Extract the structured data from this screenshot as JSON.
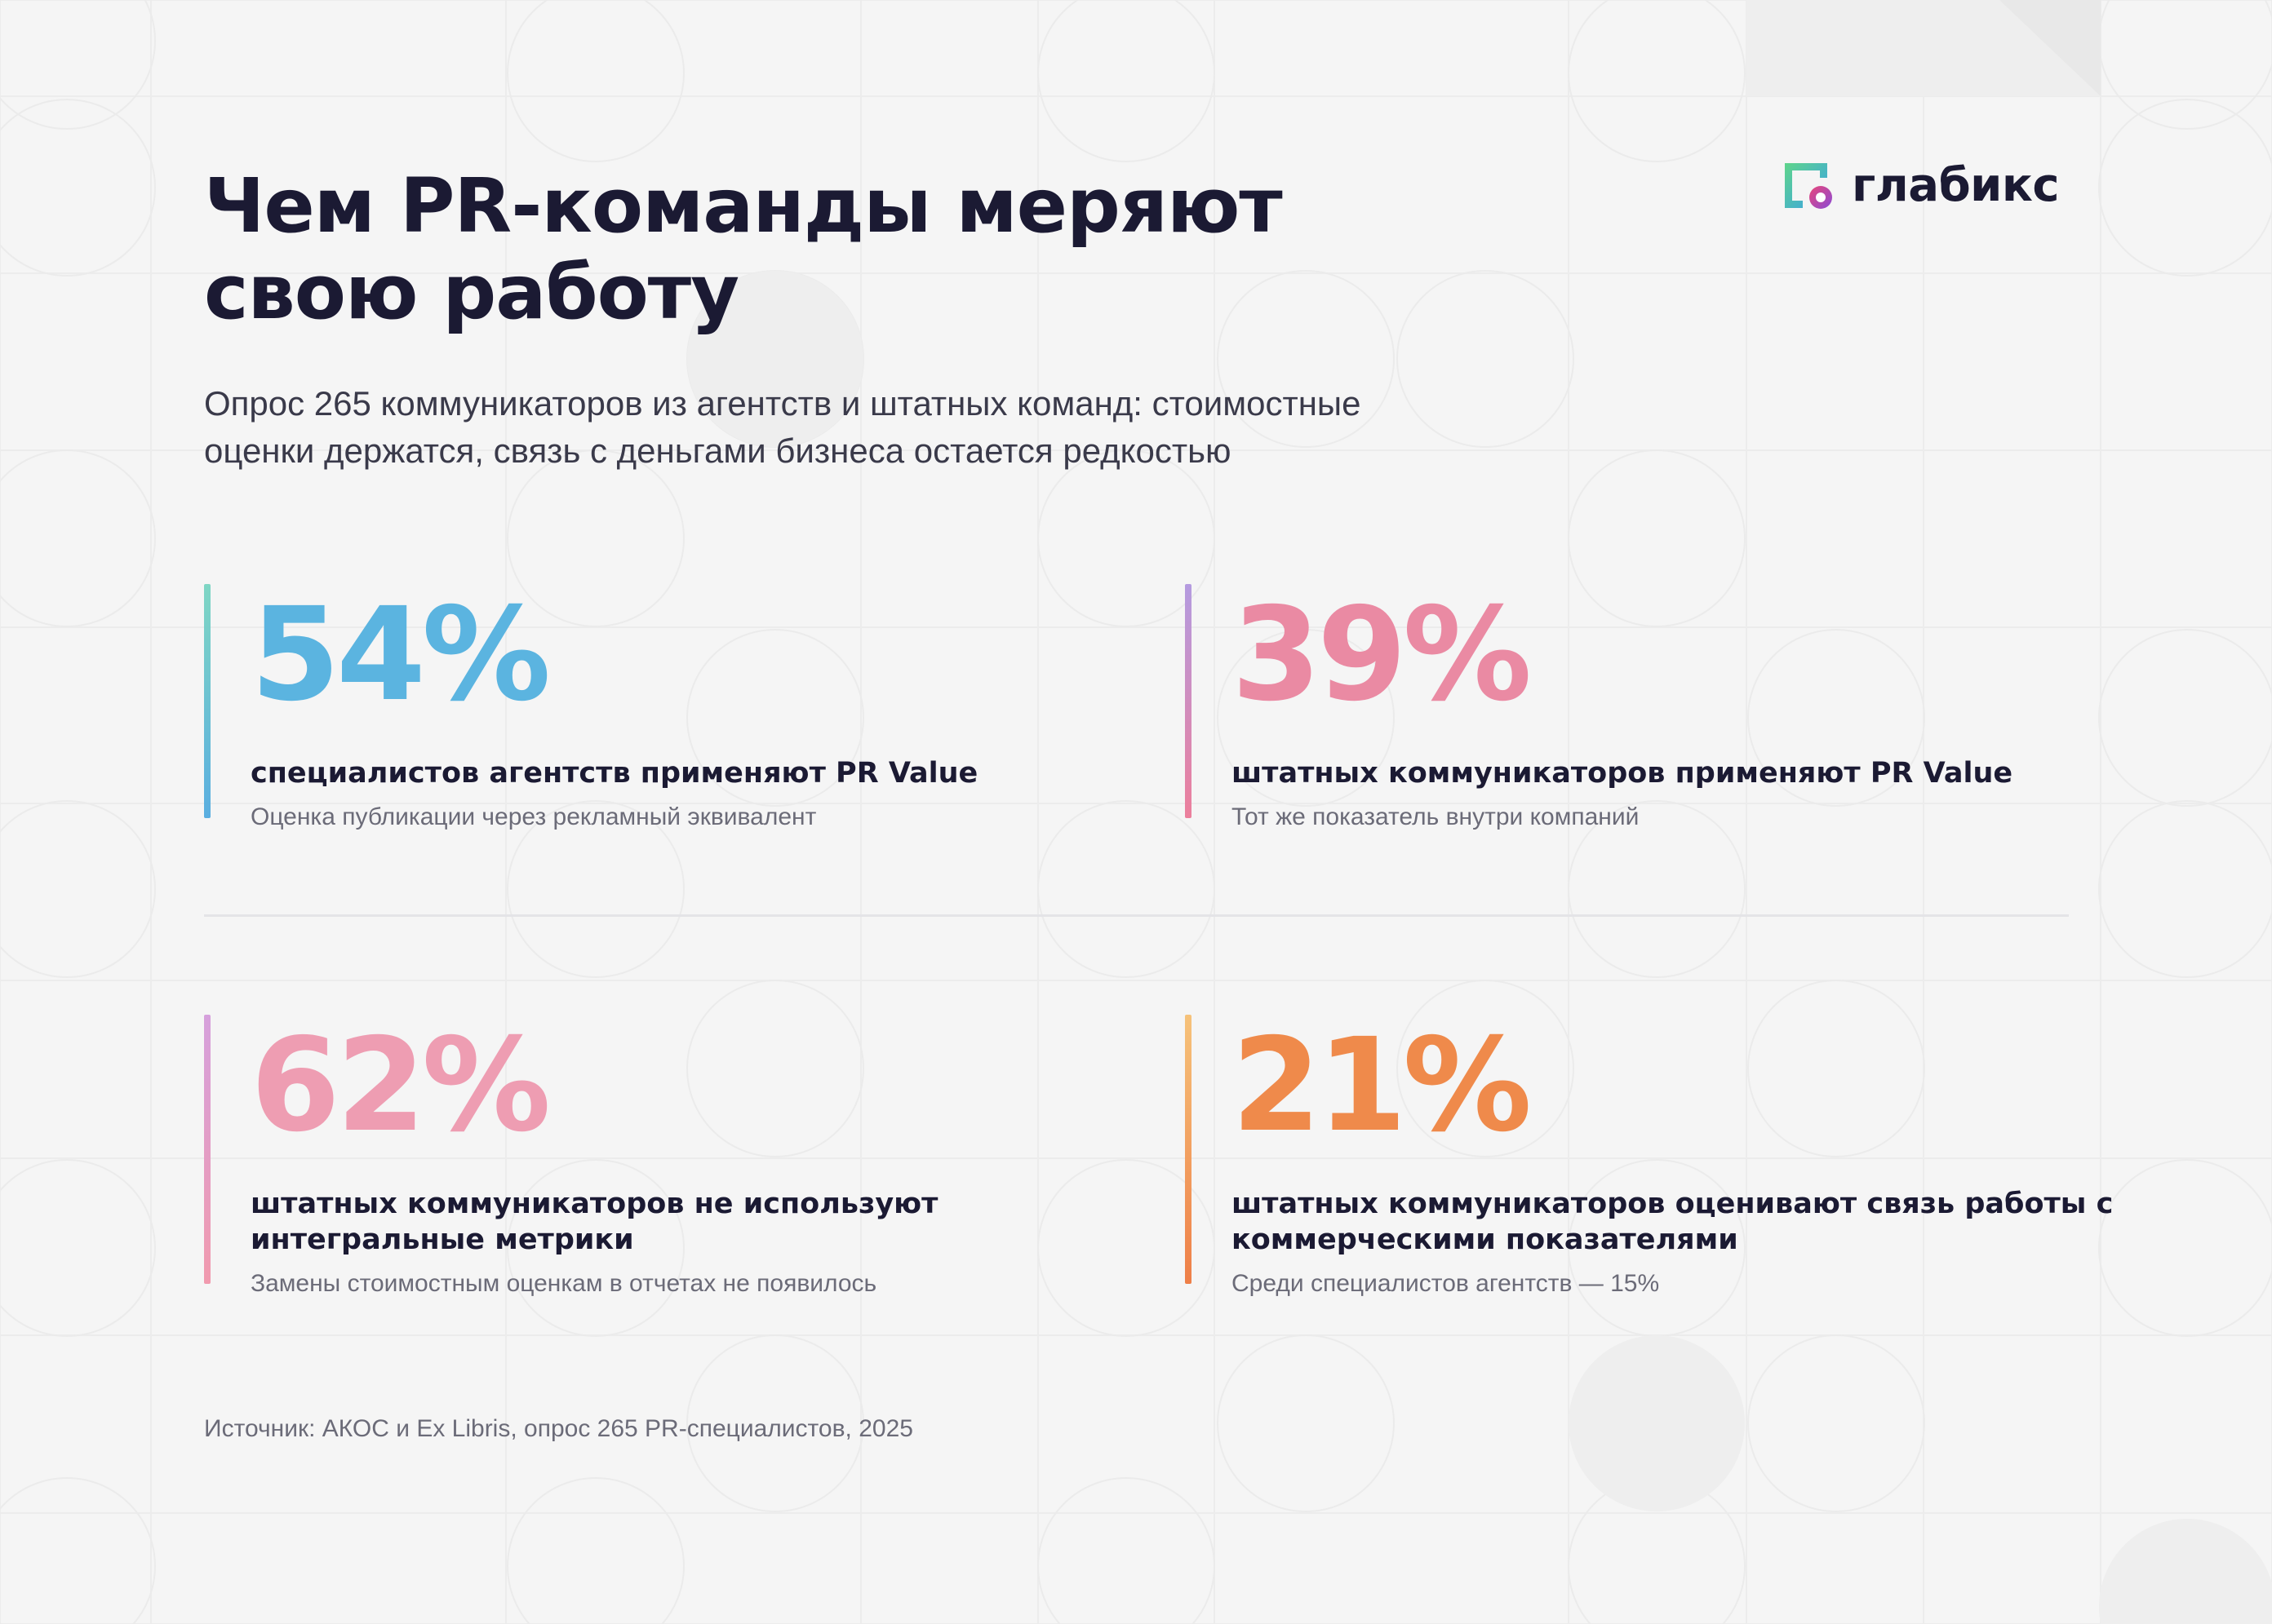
{
  "title": {
    "line1": "Чем PR-команды меряют",
    "line2": "свою работу"
  },
  "subtitle": {
    "line1": "Опрос 265 коммуникаторов из агентств и штатных команд: стоимостные",
    "line2": "оценки держатся, связь с деньгами бизнеса остается редкостью"
  },
  "logo": {
    "text": "глабикс",
    "icon": "glabix-logo-icon"
  },
  "stats": [
    {
      "value": "54%",
      "label": "специалистов агентств применяют PR Value",
      "note": "Оценка публикации через рекламный эквивалент",
      "color": "#5bb4e0",
      "accent_gradient": [
        "#7fd6c4",
        "#5aaee0"
      ]
    },
    {
      "value": "39%",
      "label": "штатных коммуникаторов применяют PR Value",
      "note": "Тот же показатель внутри компаний",
      "color": "#ea8aa3",
      "accent_gradient": [
        "#b49be0",
        "#ec7f9c"
      ]
    },
    {
      "value": "62%",
      "label": "штатных коммуникаторов не используют интегральные метрики",
      "note": "Замены стоимостным оценкам в отчетах не появилось",
      "color": "#ee9db2",
      "accent_gradient": [
        "#d6a0dc",
        "#f19aae"
      ]
    },
    {
      "value": "21%",
      "label": "штатных коммуникаторов оценивают связь работы с коммерческими показателями",
      "note": "Среди специалистов агентств — 15%",
      "color": "#ef8a4b",
      "accent_gradient": [
        "#f6c27a",
        "#ee7f48"
      ]
    }
  ],
  "source": "Источник: АКОС и Ex Libris, опрос 265 PR-специалистов, 2025"
}
